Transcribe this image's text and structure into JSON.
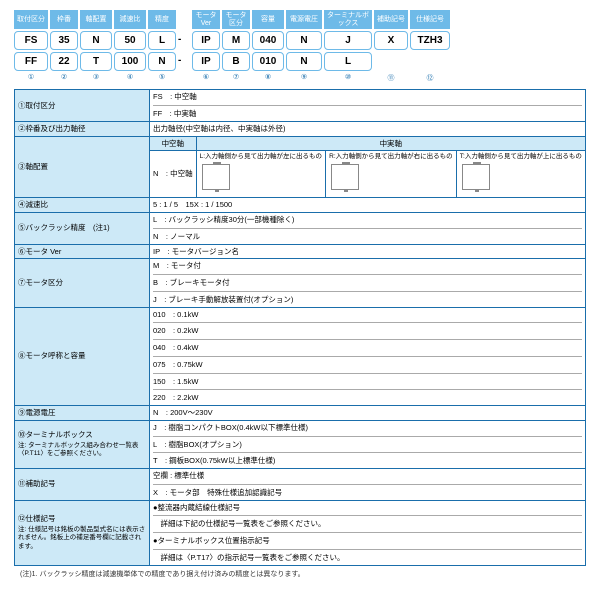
{
  "header": {
    "labels": [
      "取付区分",
      "枠番",
      "軸配置",
      "減速比",
      "精度",
      "",
      "モータVer",
      "モータ区分",
      "容量",
      "電源電圧",
      "ターミナルボックス",
      "補助記号",
      "仕様記号"
    ],
    "widths": [
      34,
      28,
      32,
      32,
      28,
      12,
      28,
      28,
      32,
      36,
      48,
      34,
      40
    ],
    "row1": [
      "FS",
      "35",
      "N",
      "50",
      "L",
      "-",
      "IP",
      "M",
      "040",
      "N",
      "J",
      "X",
      "TZH3"
    ],
    "row2": [
      "FF",
      "22",
      "T",
      "100",
      "N",
      "-",
      "IP",
      "B",
      "010",
      "N",
      "L",
      "",
      ""
    ],
    "idx": [
      "①",
      "②",
      "③",
      "④",
      "⑤",
      "",
      "⑥",
      "⑦",
      "⑧",
      "⑨",
      "⑩",
      "⑪",
      "⑫"
    ]
  },
  "rows": [
    {
      "no": "①取付区分",
      "lines": "FS　: 中空軸\nFF　: 中実軸"
    },
    {
      "no": "②枠番及び出力軸径",
      "lines": "出力軸径(中空軸は内径、中実軸は外径)"
    }
  ],
  "axisCfg": {
    "no": "③軸配置",
    "hollowHeader": "中空軸",
    "solidHeader": "中実軸",
    "hollowCode": "N　: 中空軸",
    "cells": [
      {
        "t": "L:入力軸側から見て出力軸が左に出るもの"
      },
      {
        "t": "R:入力軸側から見て出力軸が右に出るもの"
      },
      {
        "t": "T:入力軸側から見て出力軸が上に出るもの"
      }
    ]
  },
  "rows2": [
    {
      "no": "④減速比",
      "lines": "5 : 1 / 5　15X : 1 / 1500"
    },
    {
      "no": "⑤バックラッシ精度　(注1)",
      "lines": "L　: バックラッシ精度30分(一部機種除く)\nN　: ノーマル"
    },
    {
      "no": "⑥モータ Ver",
      "lines": "IP　: モータバージョン名"
    },
    {
      "no": "⑦モータ区分",
      "lines": "M　: モータ付\nB　: ブレーキモータ付\nJ　: ブレーキ手動解放装置付(オプション)"
    },
    {
      "no": "⑧モータ呼称と容量",
      "lines": "010　: 0.1kW\n020　: 0.2kW\n040　: 0.4kW\n075　: 0.75kW\n150　: 1.5kW\n220　: 2.2kW"
    },
    {
      "no": "⑨電源電圧",
      "lines": "N　: 200V〜230V"
    },
    {
      "no": "⑩ターミナルボックス",
      "note": "注: ターミナルボックス組み合わせ一覧表〈P.T11〉をご参照ください。",
      "lines": "J　: 樹脂コンパクトBOX(0.4kW以下標準仕様)\nL　: 樹脂BOX(オプション)\nT　: 鋼板BOX(0.75kW以上標準仕様)"
    },
    {
      "no": "⑪補助記号",
      "lines": "空欄 : 標準仕様\nX　: モータ部　特殊仕様追加認識記号"
    },
    {
      "no": "⑫仕様記号",
      "note": "注: 仕様記号は銘板の製品型式名には表示されません。銘板上の補足番号欄に記載されます。",
      "lines": "●整流器内蔵結線仕様記号\n　詳細は下記の仕様記号一覧表をご参照ください。\n●ターミナルボックス位置指示記号\n　詳細は〈P.T17〉の指示記号一覧表をご参照ください。"
    }
  ],
  "footnote": "(注)1. バックラッシ精度は減速機単体での精度であり据え付け済みの精度とは異なります。"
}
